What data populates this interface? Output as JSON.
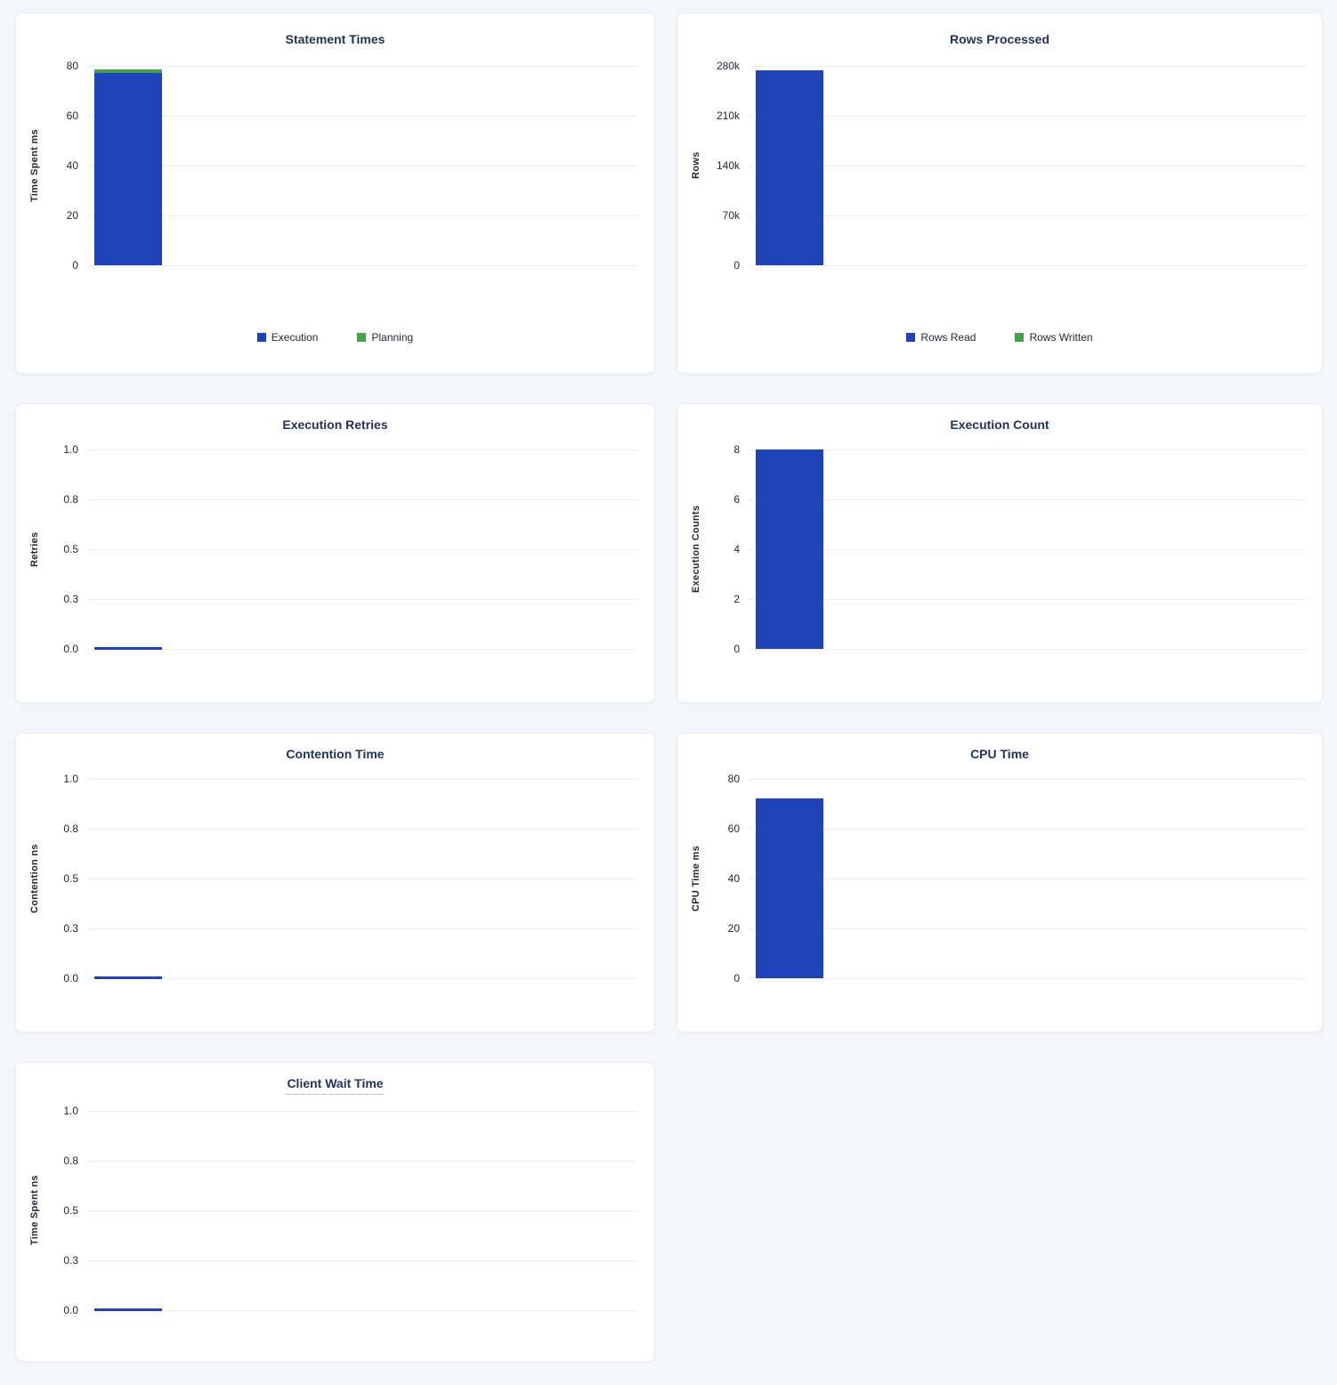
{
  "colors": {
    "page_bg": "#f4f6fa",
    "card_bg": "#ffffff",
    "card_border": "#e9edf3",
    "title": "#1f3359",
    "tick_label": "#242a35",
    "gridline": "#e9edf2",
    "bar_blue": "#1e43b8",
    "bar_green": "#45a14b"
  },
  "chart_data": [
    {
      "id": "statement-times",
      "type": "bar",
      "title": "Statement Times",
      "ylabel": "Time Spent ms",
      "ylim": [
        0,
        80
      ],
      "yticks": [
        "80",
        "60",
        "40",
        "20",
        "0"
      ],
      "grid": "horizontal",
      "stacked": true,
      "series": [
        {
          "name": "Execution",
          "values": [
            77
          ],
          "color": "#1e43b8"
        },
        {
          "name": "Planning",
          "values": [
            1.5
          ],
          "color": "#45a14b"
        }
      ],
      "legend": {
        "position": "bottom",
        "items": [
          {
            "label": "Execution",
            "color": "#1e43b8"
          },
          {
            "label": "Planning",
            "color": "#45a14b"
          }
        ]
      }
    },
    {
      "id": "rows-processed",
      "type": "bar",
      "title": "Rows Processed",
      "ylabel": "Rows",
      "ylim": [
        0,
        280000
      ],
      "yticks": [
        "280k",
        "210k",
        "140k",
        "70k",
        "0"
      ],
      "grid": "horizontal",
      "stacked": true,
      "series": [
        {
          "name": "Rows Read",
          "values": [
            274000
          ],
          "color": "#1e43b8"
        },
        {
          "name": "Rows Written",
          "values": [
            0
          ],
          "color": "#45a14b"
        }
      ],
      "legend": {
        "position": "bottom",
        "items": [
          {
            "label": "Rows Read",
            "color": "#1e43b8"
          },
          {
            "label": "Rows Written",
            "color": "#45a14b"
          }
        ]
      }
    },
    {
      "id": "execution-retries",
      "type": "bar",
      "title": "Execution Retries",
      "ylabel": "Retries",
      "ylim": [
        0,
        1.0
      ],
      "yticks": [
        "1.0",
        "0.8",
        "0.5",
        "0.3",
        "0.0"
      ],
      "grid": "horizontal",
      "stacked": false,
      "series": [
        {
          "name": "Retries",
          "values": [
            0
          ],
          "color": "#1e43b8"
        }
      ],
      "legend": null
    },
    {
      "id": "execution-count",
      "type": "bar",
      "title": "Execution Count",
      "ylabel": "Execution Counts",
      "ylim": [
        0,
        8
      ],
      "yticks": [
        "8",
        "6",
        "4",
        "2",
        "0"
      ],
      "grid": "horizontal",
      "stacked": false,
      "series": [
        {
          "name": "Execution Count",
          "values": [
            8
          ],
          "color": "#1e43b8"
        }
      ],
      "legend": null
    },
    {
      "id": "contention-time",
      "type": "bar",
      "title": "Contention Time",
      "ylabel": "Contention ns",
      "ylim": [
        0,
        1.0
      ],
      "yticks": [
        "1.0",
        "0.8",
        "0.5",
        "0.3",
        "0.0"
      ],
      "grid": "horizontal",
      "stacked": false,
      "series": [
        {
          "name": "Contention",
          "values": [
            0
          ],
          "color": "#1e43b8"
        }
      ],
      "legend": null
    },
    {
      "id": "cpu-time",
      "type": "bar",
      "title": "CPU Time",
      "ylabel": "CPU Time ms",
      "ylim": [
        0,
        80
      ],
      "yticks": [
        "80",
        "60",
        "40",
        "20",
        "0"
      ],
      "grid": "horizontal",
      "stacked": false,
      "series": [
        {
          "name": "CPU Time",
          "values": [
            72
          ],
          "color": "#1e43b8"
        }
      ],
      "legend": null
    },
    {
      "id": "client-wait-time",
      "type": "bar",
      "title": "Client Wait Time",
      "title_tooltip": true,
      "ylabel": "Time Spent ns",
      "ylim": [
        0,
        1.0
      ],
      "yticks": [
        "1.0",
        "0.8",
        "0.5",
        "0.3",
        "0.0"
      ],
      "grid": "horizontal",
      "stacked": false,
      "series": [
        {
          "name": "Client Wait",
          "values": [
            0
          ],
          "color": "#1e43b8"
        }
      ],
      "legend": null
    }
  ]
}
